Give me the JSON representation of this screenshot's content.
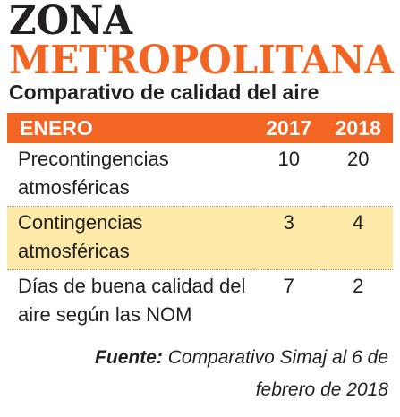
{
  "header": {
    "title": "ZONA",
    "subtitle": "METROPOLITANA",
    "caption": "Comparativo de calidad del aire"
  },
  "table": {
    "columns": [
      "ENERO",
      "2017",
      "2018"
    ],
    "rows": [
      [
        "Precontingencias atmosféricas",
        10,
        20
      ],
      [
        "Contingencias atmosféricas",
        3,
        4
      ],
      [
        "Días de buena calidad del aire según las NOM",
        7,
        2
      ]
    ]
  },
  "source": {
    "label": "Fuente:",
    "text": "Comparativo Simaj al 6 de febrero de 2018"
  }
}
